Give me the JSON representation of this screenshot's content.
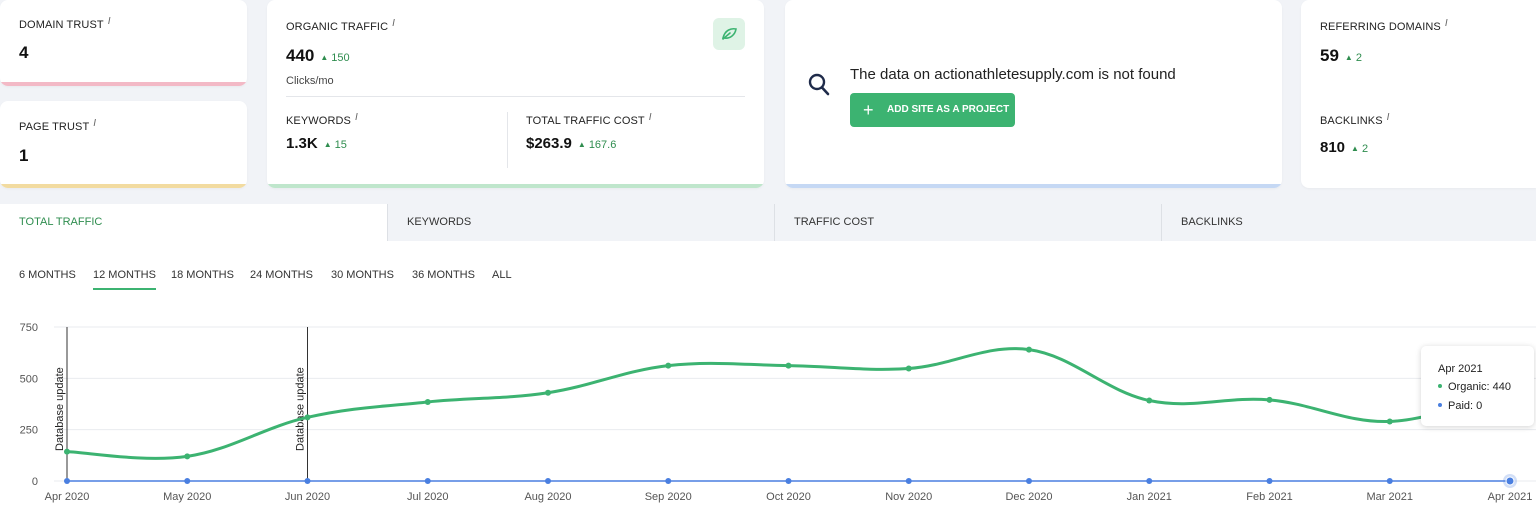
{
  "metrics": {
    "domain_trust": {
      "label": "DOMAIN TRUST",
      "value": "4"
    },
    "page_trust": {
      "label": "PAGE TRUST",
      "value": "1"
    },
    "organic_traffic": {
      "label": "ORGANIC TRAFFIC",
      "value": "440",
      "delta": "150",
      "unit": "Clicks/mo"
    },
    "keywords": {
      "label": "KEYWORDS",
      "value": "1.3K",
      "delta": "15"
    },
    "total_traffic_cost": {
      "label": "TOTAL TRAFFIC COST",
      "value": "$263.9",
      "delta": "167.6"
    },
    "not_found": {
      "message": "The data on actionathletesupply.com is not found",
      "button": "ADD SITE AS A PROJECT"
    },
    "referring_domains": {
      "label": "REFERRING DOMAINS",
      "value": "59",
      "delta": "2"
    },
    "backlinks": {
      "label": "BACKLINKS",
      "value": "810",
      "delta": "2"
    },
    "info_glyph": "i"
  },
  "tabs": [
    "TOTAL TRAFFIC",
    "KEYWORDS",
    "TRAFFIC COST",
    "BACKLINKS"
  ],
  "periods": [
    "6 MONTHS",
    "12 MONTHS",
    "18 MONTHS",
    "24 MONTHS",
    "30 MONTHS",
    "36 MONTHS",
    "ALL"
  ],
  "colors": {
    "organic": "#3cb371",
    "paid": "#4a7fe0",
    "accent": "#3cb371",
    "stripe_pink": "#f3b9c6",
    "stripe_yellow": "#f2dba0",
    "stripe_green": "#bfe6cc",
    "stripe_blue": "#c5d8f4"
  },
  "icons": {
    "leaf": "leaf-icon",
    "search": "search-icon",
    "plus": "plus-icon"
  },
  "tooltip": {
    "title": "Apr 2021",
    "organic_label": "Organic:",
    "organic_value": "440",
    "paid_label": "Paid:",
    "paid_value": "0"
  },
  "chart_data": {
    "type": "line",
    "categories": [
      "Apr 2020",
      "May 2020",
      "Jun 2020",
      "Jul 2020",
      "Aug 2020",
      "Sep 2020",
      "Oct 2020",
      "Nov 2020",
      "Dec 2020",
      "Jan 2021",
      "Feb 2021",
      "Mar 2021",
      "Apr 2021"
    ],
    "series": [
      {
        "name": "Organic",
        "values": [
          143,
          120,
          310,
          385,
          430,
          562,
          562,
          548,
          640,
          392,
          395,
          290,
          440
        ]
      },
      {
        "name": "Paid",
        "values": [
          0,
          0,
          0,
          0,
          0,
          0,
          0,
          0,
          0,
          0,
          0,
          0,
          0
        ]
      }
    ],
    "yticks": [
      0,
      250,
      500,
      750
    ],
    "ylim": [
      0,
      750
    ],
    "annotations": [
      {
        "x": "Apr 2020",
        "text": "Database update"
      },
      {
        "x": "Jun 2020",
        "text": "Database update"
      }
    ],
    "grid": true
  }
}
